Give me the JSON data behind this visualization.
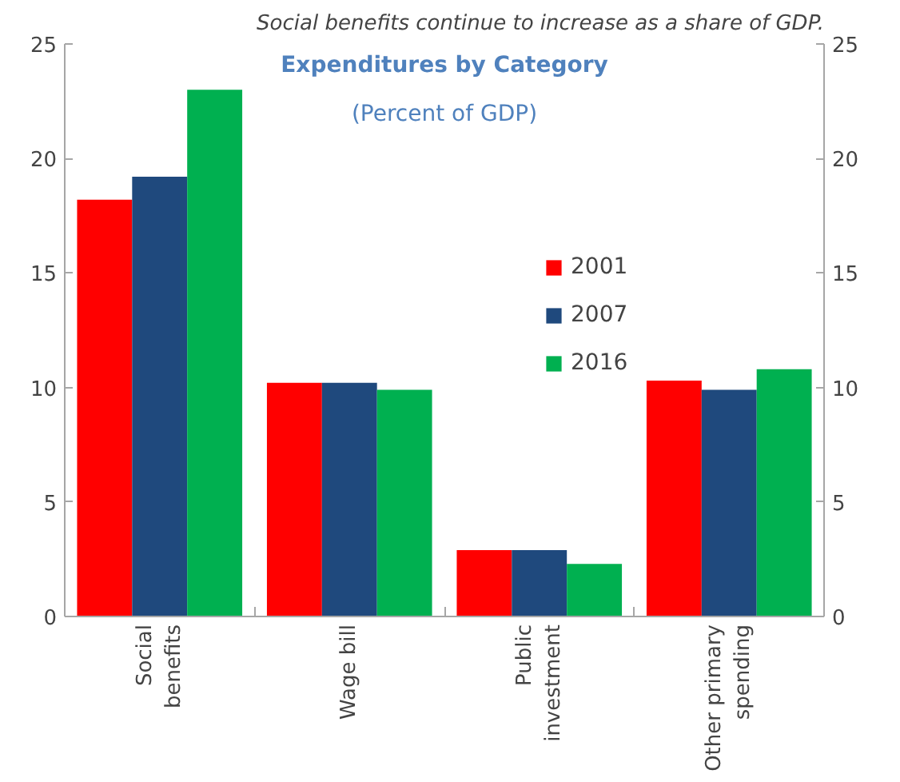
{
  "chart_data": {
    "type": "bar",
    "title": "Social benefits continue to increase as a share of GDP.",
    "subtitle": "Expenditures by Category",
    "annotations": [
      "(Percent of GDP)"
    ],
    "categories": [
      "Social benefits",
      "Wage bill",
      "Public investment",
      "Other primary spending"
    ],
    "series": [
      {
        "name": "2001",
        "color": "#ff0000",
        "values": [
          18.2,
          10.2,
          2.9,
          10.3
        ]
      },
      {
        "name": "2007",
        "color": "#1f497d",
        "values": [
          19.2,
          10.2,
          2.9,
          9.9
        ]
      },
      {
        "name": "2016",
        "color": "#00b050",
        "values": [
          23.0,
          9.9,
          2.3,
          10.8
        ]
      }
    ],
    "ylim": [
      0,
      25
    ],
    "yticks": [
      0,
      5,
      10,
      15,
      20,
      25
    ],
    "y2lim": [
      0,
      25
    ],
    "y2ticks": [
      0,
      5,
      10,
      15,
      20,
      25
    ],
    "grid": false,
    "legend": "top right"
  }
}
